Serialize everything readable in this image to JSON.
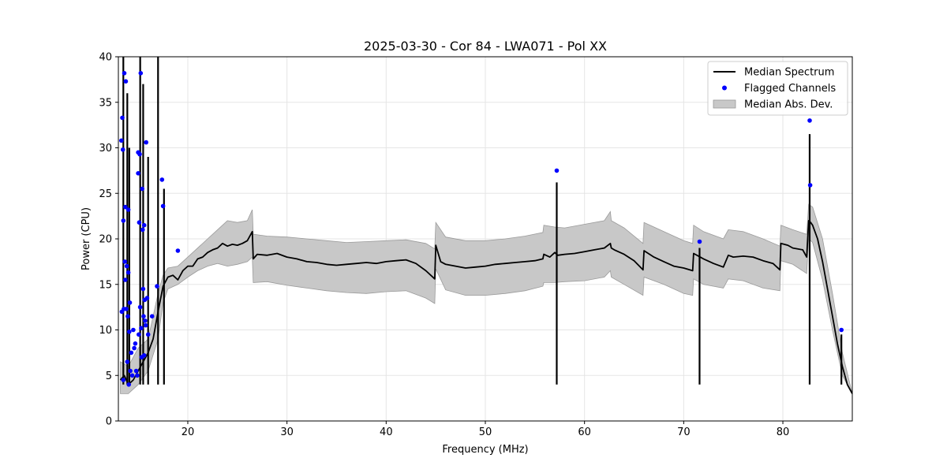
{
  "chart_data": {
    "type": "line",
    "title": "2025-03-30 - Cor 84 - LWA071 - Pol XX",
    "xlabel": "Frequency (MHz)",
    "ylabel": "Power (CPU)",
    "xlim": [
      13,
      87
    ],
    "ylim": [
      0,
      40
    ],
    "x_ticks": [
      20,
      30,
      40,
      50,
      60,
      70,
      80
    ],
    "y_ticks": [
      0,
      5,
      10,
      15,
      20,
      25,
      30,
      35,
      40
    ],
    "x_tick_labels": [
      "20",
      "30",
      "40",
      "50",
      "60",
      "70",
      "80"
    ],
    "y_tick_labels": [
      "0",
      "5",
      "10",
      "15",
      "20",
      "25",
      "30",
      "35",
      "40"
    ],
    "grid": true,
    "legend_position": "top-right",
    "legend": {
      "median": "Median Spectrum",
      "flagged": "Flagged Channels",
      "mad": "Median Abs. Dev."
    },
    "series": [
      {
        "name": "Median Spectrum",
        "kind": "line",
        "color": "#000000",
        "x": [
          13.2,
          13.6,
          14.0,
          14.5,
          15.0,
          15.5,
          16.0,
          16.5,
          17.0,
          17.5,
          18.0,
          18.5,
          19.0,
          19.5,
          20.0,
          20.5,
          21.0,
          21.5,
          22.0,
          22.5,
          23.0,
          23.5,
          24.0,
          24.5,
          25.0,
          25.5,
          26.0,
          26.5,
          26.6,
          27.0,
          28.0,
          29.0,
          30.0,
          31.0,
          32.0,
          33.0,
          34.0,
          35.0,
          36.0,
          37.0,
          38.0,
          39.0,
          40.0,
          41.0,
          42.0,
          43.0,
          44.0,
          44.9,
          45.0,
          45.5,
          46.0,
          47.0,
          48.0,
          49.0,
          50.0,
          51.0,
          52.0,
          53.0,
          54.0,
          55.0,
          55.8,
          55.9,
          56.5,
          57.0,
          57.3,
          58.0,
          59.0,
          60.0,
          61.0,
          62.0,
          62.6,
          62.7,
          63.0,
          64.0,
          65.0,
          65.9,
          66.0,
          67.0,
          68.0,
          69.0,
          70.0,
          70.9,
          71.0,
          72.0,
          73.0,
          74.0,
          74.5,
          75.0,
          76.0,
          77.0,
          78.0,
          79.0,
          79.7,
          79.8,
          80.5,
          81.0,
          82.0,
          82.4,
          82.6,
          82.8,
          83.0,
          83.5,
          84.0,
          84.5,
          85.0,
          85.5,
          86.0,
          86.5,
          87.0
        ],
        "values": [
          4.5,
          5.0,
          4.0,
          4.5,
          5.5,
          6.5,
          7.5,
          9.0,
          12.0,
          14.8,
          15.8,
          16.0,
          15.5,
          16.5,
          17.0,
          17.0,
          17.8,
          18.0,
          18.5,
          18.8,
          19.0,
          19.5,
          19.2,
          19.4,
          19.3,
          19.5,
          19.8,
          20.8,
          17.8,
          18.3,
          18.2,
          18.4,
          18.0,
          17.8,
          17.5,
          17.4,
          17.2,
          17.1,
          17.2,
          17.3,
          17.4,
          17.3,
          17.5,
          17.6,
          17.7,
          17.3,
          16.5,
          15.6,
          19.3,
          17.5,
          17.2,
          17.0,
          16.8,
          16.9,
          17.0,
          17.2,
          17.3,
          17.4,
          17.5,
          17.6,
          17.8,
          18.3,
          18.0,
          18.5,
          18.2,
          18.3,
          18.4,
          18.6,
          18.8,
          19.0,
          19.5,
          19.0,
          18.8,
          18.3,
          17.6,
          16.6,
          18.7,
          18.0,
          17.5,
          17.0,
          16.8,
          16.5,
          18.4,
          17.8,
          17.3,
          16.9,
          18.2,
          18.0,
          18.1,
          18.0,
          17.6,
          17.3,
          16.6,
          19.5,
          19.3,
          19.0,
          18.8,
          18.0,
          22.0,
          21.8,
          21.5,
          20.0,
          17.5,
          14.5,
          11.5,
          8.5,
          6.0,
          4.0,
          3.0
        ]
      },
      {
        "name": "Median Abs. Dev.",
        "kind": "band",
        "color": "#c8c8c8",
        "x": [
          13.2,
          14.0,
          15.0,
          16.0,
          17.0,
          17.5,
          18.0,
          19.0,
          20.0,
          21.0,
          22.0,
          23.0,
          24.0,
          25.0,
          26.0,
          26.5,
          26.6,
          28.0,
          30.0,
          32.0,
          34.0,
          36.0,
          38.0,
          40.0,
          42.0,
          44.0,
          44.9,
          45.0,
          46.0,
          48.0,
          50.0,
          52.0,
          54.0,
          55.8,
          55.9,
          57.0,
          58.0,
          60.0,
          62.0,
          62.6,
          62.7,
          64.0,
          65.9,
          66.0,
          68.0,
          70.0,
          70.9,
          71.0,
          72.0,
          74.0,
          74.5,
          76.0,
          78.0,
          79.7,
          79.8,
          81.0,
          82.4,
          82.6,
          83.0,
          84.0,
          85.0,
          86.0,
          87.0
        ],
        "upper": [
          6.5,
          6.0,
          8.0,
          9.0,
          14.0,
          16.0,
          16.8,
          17.0,
          18.0,
          19.0,
          20.0,
          21.0,
          22.0,
          21.8,
          22.0,
          23.2,
          20.5,
          20.3,
          20.2,
          20.0,
          19.8,
          19.6,
          19.7,
          19.8,
          19.9,
          19.5,
          18.9,
          21.8,
          20.2,
          19.8,
          19.8,
          20.0,
          20.3,
          20.7,
          21.5,
          21.3,
          21.2,
          21.6,
          22.0,
          23.0,
          22.0,
          21.2,
          19.5,
          21.8,
          20.8,
          19.8,
          19.5,
          21.5,
          20.8,
          20.0,
          21.0,
          20.8,
          20.0,
          19.2,
          21.5,
          21.0,
          20.5,
          23.8,
          23.5,
          20.0,
          14.0,
          7.5,
          3.0
        ],
        "lower": [
          3.0,
          3.0,
          4.0,
          5.5,
          9.0,
          13.0,
          14.5,
          15.0,
          15.8,
          16.5,
          17.0,
          17.3,
          17.0,
          17.2,
          17.5,
          18.0,
          15.2,
          15.3,
          14.9,
          14.6,
          14.3,
          14.1,
          14.0,
          14.2,
          14.3,
          13.5,
          12.9,
          16.7,
          14.4,
          13.8,
          13.8,
          14.0,
          14.3,
          14.8,
          15.2,
          15.2,
          15.3,
          15.4,
          15.8,
          16.5,
          15.8,
          15.0,
          13.8,
          15.8,
          15.0,
          14.0,
          13.8,
          15.6,
          15.0,
          14.6,
          15.6,
          15.4,
          14.6,
          14.3,
          17.6,
          17.2,
          16.2,
          20.0,
          19.6,
          15.5,
          10.0,
          5.0,
          3.0
        ]
      },
      {
        "name": "Flagged Channels",
        "kind": "scatter",
        "color": "#0000ff",
        "x": [
          13.3,
          13.35,
          13.4,
          13.45,
          13.5,
          13.5,
          13.55,
          13.6,
          13.65,
          13.7,
          13.7,
          13.75,
          13.8,
          13.85,
          13.9,
          13.95,
          14.0,
          14.0,
          14.05,
          14.1,
          14.15,
          14.2,
          14.3,
          14.4,
          14.5,
          14.6,
          14.7,
          14.8,
          14.9,
          15.0,
          15.0,
          15.05,
          15.1,
          15.15,
          15.2,
          15.25,
          15.3,
          15.35,
          15.4,
          15.45,
          15.5,
          15.55,
          15.6,
          15.6,
          15.65,
          15.7,
          15.75,
          15.8,
          15.9,
          16.0,
          16.4,
          16.9,
          17.4,
          17.5,
          19.0,
          57.2,
          71.6,
          82.7,
          82.75,
          85.9
        ],
        "values": [
          30.8,
          12.0,
          33.3,
          29.8,
          22.0,
          4.5,
          12.3,
          38.2,
          17.5,
          15.5,
          23.5,
          37.3,
          12.3,
          17.0,
          6.5,
          11.5,
          16.3,
          23.2,
          4.0,
          9.8,
          13.0,
          5.5,
          7.5,
          5.0,
          10.0,
          8.0,
          8.5,
          5.5,
          5.0,
          29.5,
          27.2,
          9.5,
          21.8,
          29.3,
          12.5,
          38.2,
          10.2,
          7.0,
          25.5,
          21.0,
          14.5,
          11.5,
          7.2,
          21.5,
          13.3,
          11.0,
          10.5,
          30.6,
          13.5,
          9.5,
          11.5,
          14.8,
          26.5,
          23.6,
          18.7,
          27.5,
          19.7,
          33.0,
          25.9,
          10.0
        ]
      }
    ],
    "spikes": [
      {
        "x": 13.5,
        "top": 40
      },
      {
        "x": 13.9,
        "top": 36
      },
      {
        "x": 14.1,
        "top": 30
      },
      {
        "x": 15.2,
        "top": 40
      },
      {
        "x": 15.5,
        "top": 37
      },
      {
        "x": 16.0,
        "top": 29
      },
      {
        "x": 17.0,
        "top": 40
      },
      {
        "x": 17.6,
        "top": 25.5
      },
      {
        "x": 57.2,
        "top": 26.2
      },
      {
        "x": 71.6,
        "top": 19.0
      },
      {
        "x": 82.7,
        "top": 31.5
      },
      {
        "x": 85.9,
        "top": 9.5
      }
    ]
  }
}
